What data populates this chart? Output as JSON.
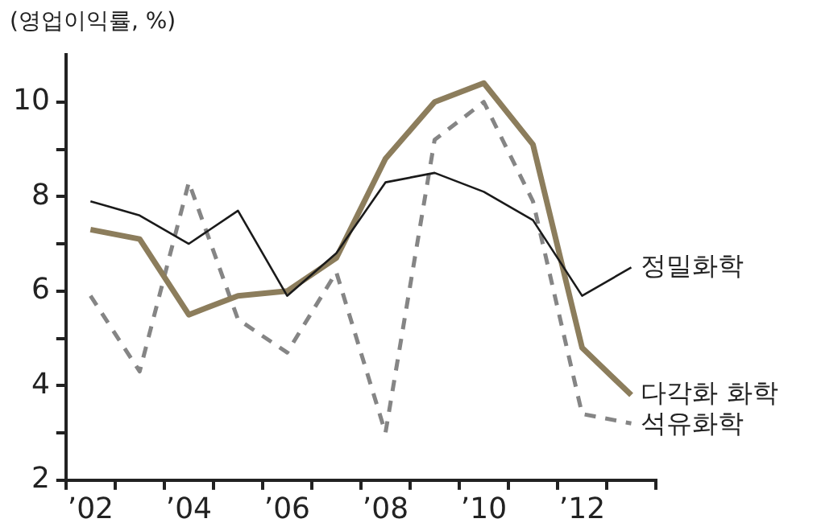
{
  "chart_data": {
    "type": "line",
    "ylabel": "(영업이익률, %)",
    "categories": [
      "’02",
      null,
      "’04",
      null,
      "’06",
      null,
      "’08",
      null,
      "’10",
      null,
      "’12",
      null
    ],
    "series": [
      {
        "name": "정밀화학",
        "color": "#1a1a1a",
        "values": [
          7.9,
          7.6,
          7.0,
          7.7,
          5.9,
          6.8,
          8.3,
          8.5,
          8.1,
          7.5,
          5.9,
          6.5
        ]
      },
      {
        "name": "다각화 화학",
        "color": "#8c7d5c",
        "values": [
          7.3,
          7.1,
          5.5,
          5.9,
          6.0,
          6.7,
          8.8,
          10.0,
          10.4,
          9.1,
          4.8,
          3.8
        ]
      },
      {
        "name": "석유화학",
        "color": "#858585",
        "line_style": "dashed",
        "values": [
          5.9,
          4.3,
          8.3,
          5.4,
          4.7,
          6.4,
          3.0,
          9.2,
          10.0,
          7.9,
          3.4,
          3.2
        ]
      }
    ],
    "ylim": [
      2,
      11
    ],
    "yticks": [
      2,
      {
        "value": 3,
        "label": null
      },
      4,
      {
        "value": 5,
        "label": null
      },
      6,
      {
        "value": 7,
        "label": null
      },
      8,
      {
        "value": 9,
        "label": null
      },
      10
    ],
    "grid": false,
    "legend": false,
    "marker": "none"
  }
}
